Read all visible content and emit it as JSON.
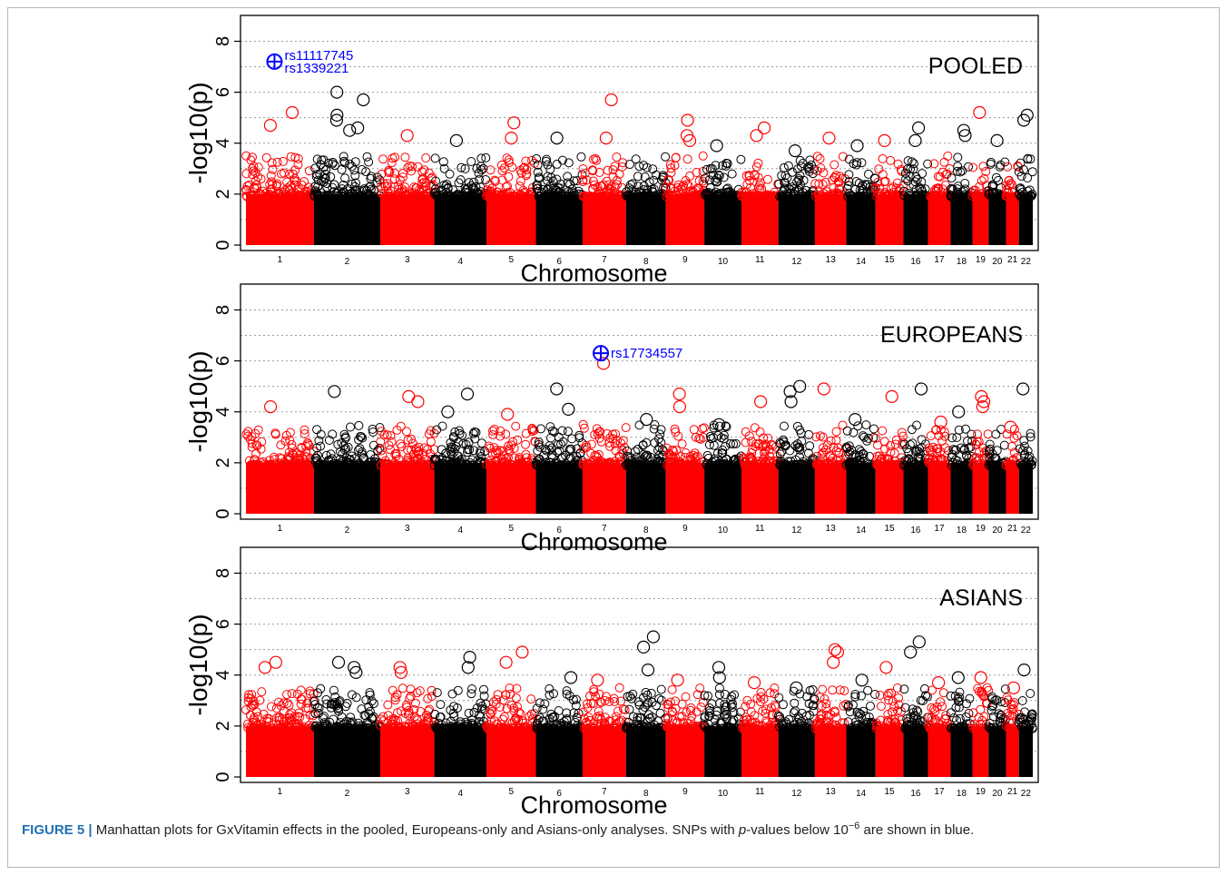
{
  "chart_data": [
    {
      "type": "scatter",
      "subtype": "manhattan",
      "label": "POOLED",
      "xlabel": "Chromosome",
      "ylabel": "-log10(p)",
      "ylim": [
        0,
        8.8
      ],
      "yticks": [
        0,
        2,
        4,
        6,
        8
      ],
      "grid": "horizontal dotted",
      "chromosomes": [
        "1",
        "2",
        "3",
        "4",
        "5",
        "6",
        "7",
        "8",
        "9",
        "10",
        "11",
        "12",
        "13",
        "14",
        "15",
        "16",
        "17",
        "18",
        "19",
        "20",
        "21",
        "22"
      ],
      "colors": [
        "#ff0000",
        "#000000"
      ],
      "highlight_color": "#0000ff",
      "peaks": [
        {
          "chr": "1",
          "value": 4.7
        },
        {
          "chr": "1",
          "value": 5.2
        },
        {
          "chr": "2",
          "value": 6.0
        },
        {
          "chr": "2",
          "value": 5.7
        },
        {
          "chr": "2",
          "value": 5.1
        },
        {
          "chr": "2",
          "value": 4.9
        },
        {
          "chr": "2",
          "value": 4.6
        },
        {
          "chr": "2",
          "value": 4.5
        },
        {
          "chr": "3",
          "value": 4.3
        },
        {
          "chr": "4",
          "value": 4.1
        },
        {
          "chr": "5",
          "value": 4.8
        },
        {
          "chr": "5",
          "value": 4.2
        },
        {
          "chr": "6",
          "value": 4.2
        },
        {
          "chr": "7",
          "value": 5.7
        },
        {
          "chr": "7",
          "value": 4.2
        },
        {
          "chr": "9",
          "value": 4.9
        },
        {
          "chr": "9",
          "value": 4.3
        },
        {
          "chr": "9",
          "value": 4.1
        },
        {
          "chr": "10",
          "value": 3.9
        },
        {
          "chr": "11",
          "value": 4.6
        },
        {
          "chr": "11",
          "value": 4.3
        },
        {
          "chr": "12",
          "value": 3.7
        },
        {
          "chr": "13",
          "value": 4.2
        },
        {
          "chr": "14",
          "value": 3.9
        },
        {
          "chr": "15",
          "value": 4.1
        },
        {
          "chr": "16",
          "value": 4.6
        },
        {
          "chr": "16",
          "value": 4.1
        },
        {
          "chr": "18",
          "value": 4.5
        },
        {
          "chr": "18",
          "value": 4.3
        },
        {
          "chr": "19",
          "value": 5.2
        },
        {
          "chr": "20",
          "value": 4.1
        },
        {
          "chr": "22",
          "value": 5.1
        },
        {
          "chr": "22",
          "value": 4.9
        }
      ],
      "highlights": [
        {
          "chr": "1",
          "value": 7.2,
          "labels": [
            "rs11117745",
            "rs1339221"
          ]
        }
      ]
    },
    {
      "type": "scatter",
      "subtype": "manhattan",
      "label": "EUROPEANS",
      "xlabel": "Chromosome",
      "ylabel": "-log10(p)",
      "ylim": [
        0,
        8.8
      ],
      "yticks": [
        0,
        2,
        4,
        6,
        8
      ],
      "grid": "horizontal dotted",
      "chromosomes": [
        "1",
        "2",
        "3",
        "4",
        "5",
        "6",
        "7",
        "8",
        "9",
        "10",
        "11",
        "12",
        "13",
        "14",
        "15",
        "16",
        "17",
        "18",
        "19",
        "20",
        "21",
        "22"
      ],
      "colors": [
        "#ff0000",
        "#000000"
      ],
      "highlight_color": "#0000ff",
      "peaks": [
        {
          "chr": "1",
          "value": 4.2
        },
        {
          "chr": "2",
          "value": 4.8
        },
        {
          "chr": "3",
          "value": 4.6
        },
        {
          "chr": "3",
          "value": 4.4
        },
        {
          "chr": "4",
          "value": 4.7
        },
        {
          "chr": "4",
          "value": 4.0
        },
        {
          "chr": "5",
          "value": 3.9
        },
        {
          "chr": "6",
          "value": 4.9
        },
        {
          "chr": "6",
          "value": 4.1
        },
        {
          "chr": "7",
          "value": 5.9
        },
        {
          "chr": "8",
          "value": 3.7
        },
        {
          "chr": "9",
          "value": 4.7
        },
        {
          "chr": "9",
          "value": 4.2
        },
        {
          "chr": "10",
          "value": 3.5
        },
        {
          "chr": "11",
          "value": 4.4
        },
        {
          "chr": "12",
          "value": 5.0
        },
        {
          "chr": "12",
          "value": 4.8
        },
        {
          "chr": "12",
          "value": 4.4
        },
        {
          "chr": "13",
          "value": 4.9
        },
        {
          "chr": "14",
          "value": 3.7
        },
        {
          "chr": "15",
          "value": 4.6
        },
        {
          "chr": "16",
          "value": 4.9
        },
        {
          "chr": "17",
          "value": 3.6
        },
        {
          "chr": "18",
          "value": 4.0
        },
        {
          "chr": "19",
          "value": 4.6
        },
        {
          "chr": "19",
          "value": 4.4
        },
        {
          "chr": "19",
          "value": 4.2
        },
        {
          "chr": "21",
          "value": 3.4
        },
        {
          "chr": "22",
          "value": 4.9
        }
      ],
      "highlights": [
        {
          "chr": "7",
          "value": 6.3,
          "labels": [
            "rs17734557"
          ]
        }
      ]
    },
    {
      "type": "scatter",
      "subtype": "manhattan",
      "label": "ASIANS",
      "xlabel": "Chromosome",
      "ylabel": "-log10(p)",
      "ylim": [
        0,
        8.8
      ],
      "yticks": [
        0,
        2,
        4,
        6,
        8
      ],
      "grid": "horizontal dotted",
      "chromosomes": [
        "1",
        "2",
        "3",
        "4",
        "5",
        "6",
        "7",
        "8",
        "9",
        "10",
        "11",
        "12",
        "13",
        "14",
        "15",
        "16",
        "17",
        "18",
        "19",
        "20",
        "21",
        "22"
      ],
      "colors": [
        "#ff0000",
        "#000000"
      ],
      "highlight_color": "#0000ff",
      "peaks": [
        {
          "chr": "1",
          "value": 4.5
        },
        {
          "chr": "1",
          "value": 4.3
        },
        {
          "chr": "2",
          "value": 4.5
        },
        {
          "chr": "2",
          "value": 4.3
        },
        {
          "chr": "2",
          "value": 4.1
        },
        {
          "chr": "3",
          "value": 4.3
        },
        {
          "chr": "3",
          "value": 4.1
        },
        {
          "chr": "4",
          "value": 4.7
        },
        {
          "chr": "4",
          "value": 4.3
        },
        {
          "chr": "5",
          "value": 4.9
        },
        {
          "chr": "5",
          "value": 4.5
        },
        {
          "chr": "6",
          "value": 3.9
        },
        {
          "chr": "7",
          "value": 3.8
        },
        {
          "chr": "8",
          "value": 5.5
        },
        {
          "chr": "8",
          "value": 5.1
        },
        {
          "chr": "8",
          "value": 4.2
        },
        {
          "chr": "9",
          "value": 3.8
        },
        {
          "chr": "10",
          "value": 4.3
        },
        {
          "chr": "10",
          "value": 3.9
        },
        {
          "chr": "11",
          "value": 3.7
        },
        {
          "chr": "12",
          "value": 3.5
        },
        {
          "chr": "13",
          "value": 5.0
        },
        {
          "chr": "13",
          "value": 4.9
        },
        {
          "chr": "13",
          "value": 4.5
        },
        {
          "chr": "14",
          "value": 3.8
        },
        {
          "chr": "15",
          "value": 4.3
        },
        {
          "chr": "16",
          "value": 5.3
        },
        {
          "chr": "16",
          "value": 4.9
        },
        {
          "chr": "17",
          "value": 3.7
        },
        {
          "chr": "18",
          "value": 3.9
        },
        {
          "chr": "19",
          "value": 3.9
        },
        {
          "chr": "21",
          "value": 3.5
        },
        {
          "chr": "22",
          "value": 4.2
        }
      ],
      "highlights": []
    }
  ],
  "caption": {
    "figure_label": "FIGURE 5 |",
    "text_1": " Manhattan plots for GxVitamin effects in the pooled, Europeans-only and Asians-only analyses. SNPs with ",
    "p_italic": "p",
    "text_2": "-values below 10",
    "exponent": "−6",
    "text_3": " are shown in blue."
  }
}
